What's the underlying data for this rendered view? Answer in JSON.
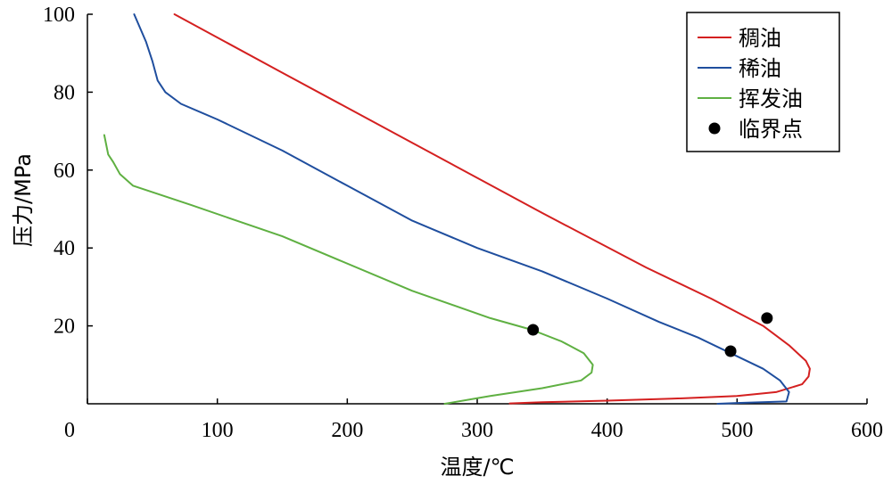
{
  "chart_data": {
    "type": "line",
    "xlabel": "温度/℃",
    "ylabel": "压力/MPa",
    "xlim": [
      0,
      600
    ],
    "ylim": [
      0,
      100
    ],
    "x_ticks": [
      0,
      100,
      200,
      300,
      400,
      500,
      600
    ],
    "y_ticks": [
      20,
      40,
      60,
      80,
      100
    ],
    "grid": false,
    "legend_position": "top-right",
    "series": [
      {
        "name": "稠油",
        "color": "#d42020",
        "points": [
          [
            67,
            100
          ],
          [
            150,
            85
          ],
          [
            250,
            67
          ],
          [
            350,
            49
          ],
          [
            430,
            35
          ],
          [
            480,
            27
          ],
          [
            520,
            20
          ],
          [
            540,
            15
          ],
          [
            553,
            11
          ],
          [
            556,
            9
          ],
          [
            555,
            7
          ],
          [
            550,
            5
          ],
          [
            530,
            3
          ],
          [
            500,
            2
          ],
          [
            450,
            1.3
          ],
          [
            400,
            0.8
          ],
          [
            350,
            0.4
          ],
          [
            325,
            0.1
          ]
        ]
      },
      {
        "name": "稀油",
        "color": "#1f4e9e",
        "points": [
          [
            36,
            100
          ],
          [
            45,
            93
          ],
          [
            50,
            88
          ],
          [
            54,
            83
          ],
          [
            60,
            80
          ],
          [
            72,
            77
          ],
          [
            100,
            73
          ],
          [
            150,
            65
          ],
          [
            200,
            56
          ],
          [
            250,
            47
          ],
          [
            300,
            40
          ],
          [
            350,
            34
          ],
          [
            400,
            27
          ],
          [
            440,
            21
          ],
          [
            470,
            17
          ],
          [
            495,
            13
          ],
          [
            520,
            9
          ],
          [
            533,
            6
          ],
          [
            540,
            3
          ],
          [
            538,
            0.6
          ],
          [
            500,
            0.2
          ],
          [
            485,
            0
          ]
        ]
      },
      {
        "name": "挥发油",
        "color": "#5fb042",
        "points": [
          [
            13,
            69
          ],
          [
            16,
            64
          ],
          [
            20,
            62
          ],
          [
            25,
            59
          ],
          [
            35,
            56
          ],
          [
            80,
            51
          ],
          [
            150,
            43
          ],
          [
            250,
            29
          ],
          [
            310,
            22
          ],
          [
            342,
            19
          ],
          [
            365,
            16
          ],
          [
            382,
            13
          ],
          [
            389,
            10
          ],
          [
            388,
            8
          ],
          [
            380,
            6
          ],
          [
            350,
            4
          ],
          [
            310,
            2
          ],
          [
            275,
            0
          ]
        ]
      }
    ],
    "critical_points": {
      "name": "临界点",
      "color": "#000000",
      "points": [
        [
          523,
          22
        ],
        [
          495,
          13.5
        ],
        [
          343,
          19
        ]
      ]
    }
  }
}
